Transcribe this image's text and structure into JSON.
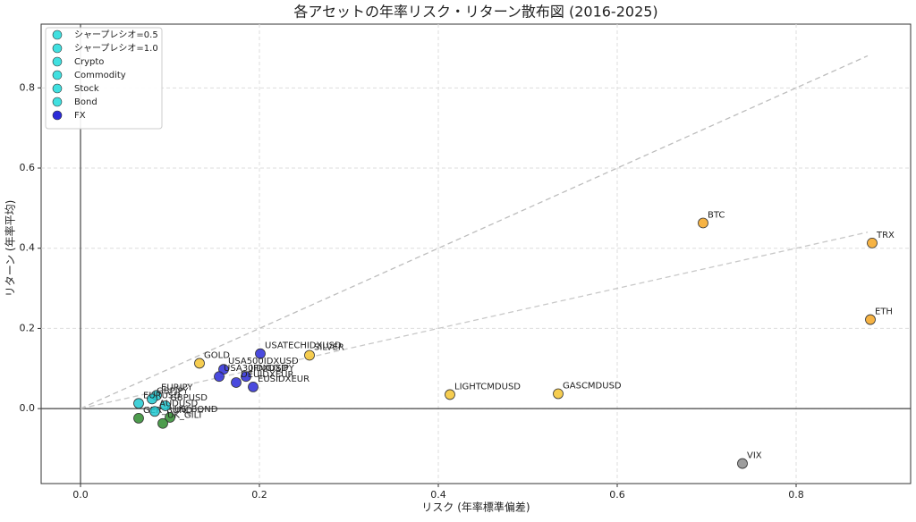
{
  "chart_data": {
    "type": "scatter",
    "title": "各アセットの年率リスク・リターン散布図 (2016-2025)",
    "x_label": "リスク (年率標準偏差)",
    "y_label": "リターン (年率平均)",
    "xlim": [
      -0.044,
      0.928
    ],
    "ylim": [
      -0.187,
      0.959
    ],
    "xticks": [
      {
        "value": 0,
        "label": "0.0"
      },
      {
        "value": 0.2,
        "label": "0.2"
      },
      {
        "value": 0.4,
        "label": "0.4"
      },
      {
        "value": 0.6,
        "label": "0.6"
      },
      {
        "value": 0.8,
        "label": "0.8"
      }
    ],
    "yticks": [
      {
        "value": 0,
        "label": "0.0"
      },
      {
        "value": 0.2,
        "label": "0.2"
      },
      {
        "value": 0.4,
        "label": "0.4"
      },
      {
        "value": 0.6,
        "label": "0.6"
      },
      {
        "value": 0.8,
        "label": "0.8"
      }
    ],
    "grid": true,
    "legend": "upper left",
    "series": [
      {
        "name": "シャープレシオ=0.5",
        "kind": "line",
        "color": "#c8c8c8",
        "legend_color": "#40e0e0",
        "x": [
          0,
          0.88
        ],
        "values": [
          0,
          0.44
        ]
      },
      {
        "name": "シャープレシオ=1.0",
        "kind": "line",
        "color": "#bdbdbd",
        "legend_color": "#40e0e0",
        "x": [
          0,
          0.88
        ],
        "values": [
          0,
          0.88
        ]
      },
      {
        "name": "Crypto",
        "color": "#f5a623",
        "legend_color": "#40e0e0",
        "x": [
          0.696,
          0.885,
          0.883
        ],
        "values": [
          0.463,
          0.413,
          0.222
        ],
        "labels": [
          "BTC",
          "TRX",
          "ETH"
        ]
      },
      {
        "name": "Commodity",
        "color": "#f5c431",
        "legend_color": "#40e0e0",
        "x": [
          0.133,
          0.256,
          0.413,
          0.534
        ],
        "values": [
          0.113,
          0.133,
          0.035,
          0.037
        ],
        "labels": [
          "GOLD",
          "SILVER",
          "LIGHTCMDUSD",
          "GASCMDUSD"
        ]
      },
      {
        "name": "Stock",
        "color": "#2a2ad8",
        "legend_color": "#40e0e0",
        "x": [
          0.201,
          0.16,
          0.155,
          0.185,
          0.174,
          0.193
        ],
        "values": [
          0.137,
          0.098,
          0.08,
          0.08,
          0.065,
          0.054
        ],
        "labels": [
          "USATECHIDXUSD",
          "USA500IDXUSD",
          "USA30IDXUSD",
          "JPNIDXJPY",
          "DEUIDXEUR",
          "EUSIDXEUR"
        ]
      },
      {
        "name": "Bond",
        "color": "#2e8b2e",
        "legend_color": "#40e0e0",
        "x": [
          0.065,
          0.1,
          0.092
        ],
        "values": [
          -0.024,
          -0.022,
          -0.037
        ],
        "labels": [
          "GER_BUND",
          "US_BOND",
          "UK_GILT"
        ]
      },
      {
        "name": "FX",
        "color": "#20c8d0",
        "legend_color": "#2a2ad8",
        "x": [
          0.085,
          0.08,
          0.065,
          0.095,
          0.083
        ],
        "values": [
          0.033,
          0.024,
          0.013,
          0.007,
          -0.007
        ],
        "labels": [
          "EURJPY",
          "GBPJPY",
          "EURUSD",
          "GBPUSD",
          "AUDUSD"
        ]
      },
      {
        "color": "#8c8c8c",
        "x": [
          0.74
        ],
        "values": [
          -0.137
        ],
        "labels": [
          "VIX"
        ]
      }
    ]
  }
}
